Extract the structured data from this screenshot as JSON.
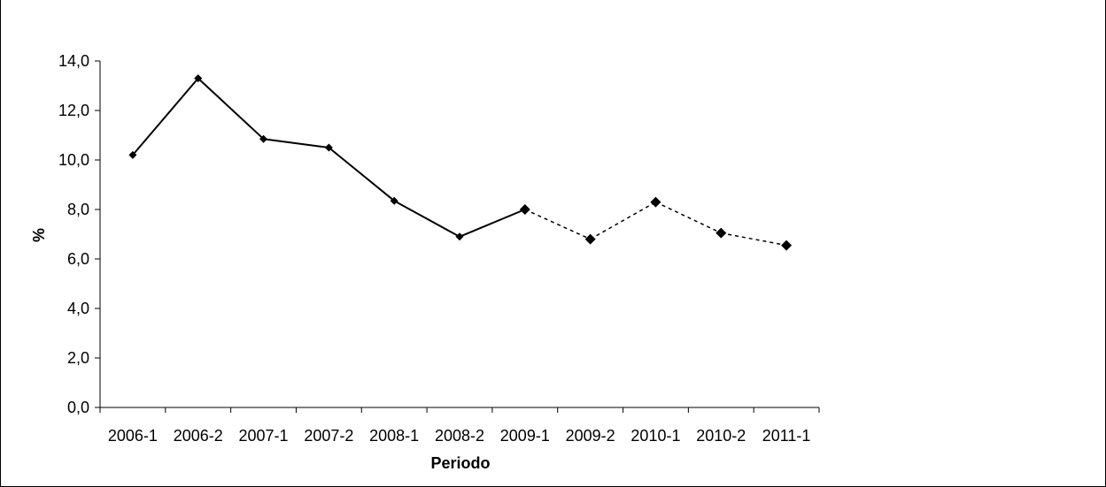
{
  "chart_data": {
    "type": "line",
    "title": "",
    "xlabel": "Periodo",
    "ylabel": "%",
    "categories": [
      "2006-1",
      "2006-2",
      "2007-1",
      "2007-2",
      "2008-1",
      "2008-2",
      "2009-1",
      "2009-2",
      "2010-1",
      "2010-2",
      "2011-1"
    ],
    "y_ticks": [
      "0,0",
      "2,0",
      "4,0",
      "6,0",
      "8,0",
      "10,0",
      "12,0",
      "14,0"
    ],
    "ylim": [
      0,
      14
    ],
    "grid": false,
    "legend": "none",
    "series": [
      {
        "values": [
          10.2,
          13.3,
          10.85,
          10.5,
          8.35,
          6.9,
          8.0,
          6.8,
          8.3,
          7.05,
          6.55
        ],
        "solid_through_index": 6,
        "color": "#000000"
      }
    ]
  }
}
